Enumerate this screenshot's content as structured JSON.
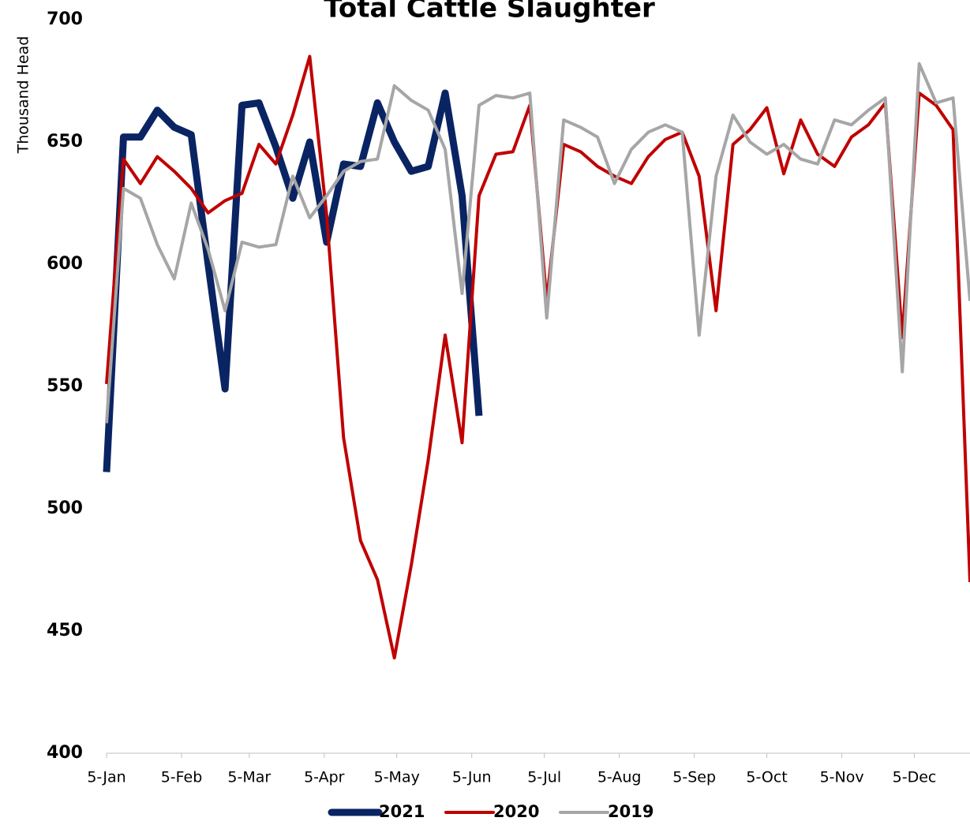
{
  "chart_data": {
    "type": "line",
    "title": "Total Cattle Slaughter",
    "y_label": "Thousand Head",
    "x": [
      5,
      12,
      19,
      26,
      33,
      40,
      47,
      54,
      61,
      68,
      75,
      82,
      89,
      96,
      103,
      110,
      117,
      124,
      131,
      138,
      145,
      152,
      159,
      166,
      173,
      180,
      187,
      194,
      201,
      208,
      215,
      222,
      229,
      236,
      243,
      250,
      257,
      264,
      271,
      278,
      285,
      292,
      299,
      306,
      313,
      320,
      327,
      334,
      341,
      348,
      355,
      362
    ],
    "xlim": [
      5,
      362
    ],
    "xticks": [
      {
        "value": 5,
        "label": "5-Jan"
      },
      {
        "value": 36,
        "label": "5-Feb"
      },
      {
        "value": 64,
        "label": "5-Mar"
      },
      {
        "value": 95,
        "label": "5-Apr"
      },
      {
        "value": 125,
        "label": "5-May"
      },
      {
        "value": 156,
        "label": "5-Jun"
      },
      {
        "value": 186,
        "label": "5-Jul"
      },
      {
        "value": 217,
        "label": "5-Aug"
      },
      {
        "value": 248,
        "label": "5-Sep"
      },
      {
        "value": 278,
        "label": "5-Oct"
      },
      {
        "value": 309,
        "label": "5-Nov"
      },
      {
        "value": 339,
        "label": "5-Dec"
      }
    ],
    "ylim": [
      400,
      700
    ],
    "yticks": [
      400,
      450,
      500,
      550,
      600,
      650,
      700
    ],
    "series": [
      {
        "name": "2021",
        "color": "#0a2463",
        "values": [
          515,
          652,
          652,
          663,
          656,
          653,
          600,
          549,
          665,
          666,
          648,
          627,
          650,
          609,
          641,
          640,
          666,
          650,
          638,
          640,
          670,
          628,
          538,
          null,
          null,
          null,
          null,
          null,
          null,
          null,
          null,
          null,
          null,
          null,
          null,
          null,
          null,
          null,
          null,
          null,
          null,
          null,
          null,
          null,
          null,
          null,
          null,
          null,
          null,
          null,
          null,
          null
        ]
      },
      {
        "name": "2020",
        "color": "#c00000",
        "values": [
          551,
          643,
          633,
          644,
          638,
          631,
          621,
          626,
          629,
          649,
          641,
          661,
          685,
          620,
          529,
          487,
          471,
          439,
          477,
          520,
          571,
          527,
          628,
          645,
          646,
          665,
          585,
          649,
          646,
          640,
          636,
          633,
          644,
          651,
          654,
          636,
          581,
          649,
          655,
          664,
          637,
          659,
          645,
          640,
          652,
          657,
          666,
          570,
          670,
          665,
          655,
          470
        ]
      },
      {
        "name": "2019",
        "color": "#a6a6a6",
        "values": [
          535,
          631,
          627,
          608,
          594,
          625,
          606,
          581,
          609,
          607,
          608,
          636,
          619,
          628,
          638,
          642,
          643,
          673,
          667,
          663,
          647,
          588,
          665,
          669,
          668,
          670,
          578,
          659,
          656,
          652,
          633,
          647,
          654,
          657,
          654,
          571,
          636,
          661,
          650,
          645,
          649,
          643,
          641,
          659,
          657,
          663,
          668,
          556,
          682,
          666,
          668,
          585
        ]
      }
    ]
  }
}
